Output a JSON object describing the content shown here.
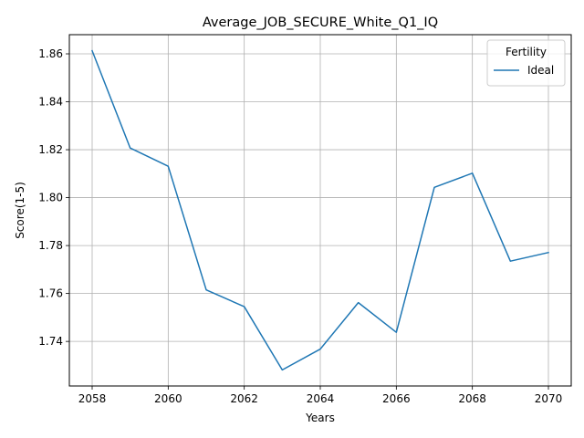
{
  "chart_data": {
    "type": "line",
    "title": "Average_JOB_SECURE_White_Q1_IQ",
    "xlabel": "Years",
    "ylabel": "Score(1-5)",
    "x": [
      2058,
      2059,
      2060,
      2061,
      2062,
      2063,
      2064,
      2065,
      2066,
      2067,
      2068,
      2069,
      2070
    ],
    "series": [
      {
        "name": "Ideal",
        "color": "#1f77b4",
        "values": [
          1.8613,
          1.8207,
          1.8131,
          1.7615,
          1.7545,
          1.7281,
          1.7368,
          1.7562,
          1.7438,
          1.8043,
          1.8102,
          1.7735,
          1.7771
        ]
      }
    ],
    "xlim": [
      2057.4,
      2070.6
    ],
    "ylim": [
      1.7214,
      1.868
    ],
    "xticks": [
      2058,
      2060,
      2062,
      2064,
      2066,
      2068,
      2070
    ],
    "yticks": [
      1.74,
      1.76,
      1.78,
      1.8,
      1.82,
      1.84,
      1.86
    ],
    "ytick_labels": [
      "1.74",
      "1.76",
      "1.78",
      "1.80",
      "1.82",
      "1.84",
      "1.86"
    ],
    "grid": true,
    "legend": {
      "title": "Fertility",
      "placement": "upper right"
    }
  }
}
